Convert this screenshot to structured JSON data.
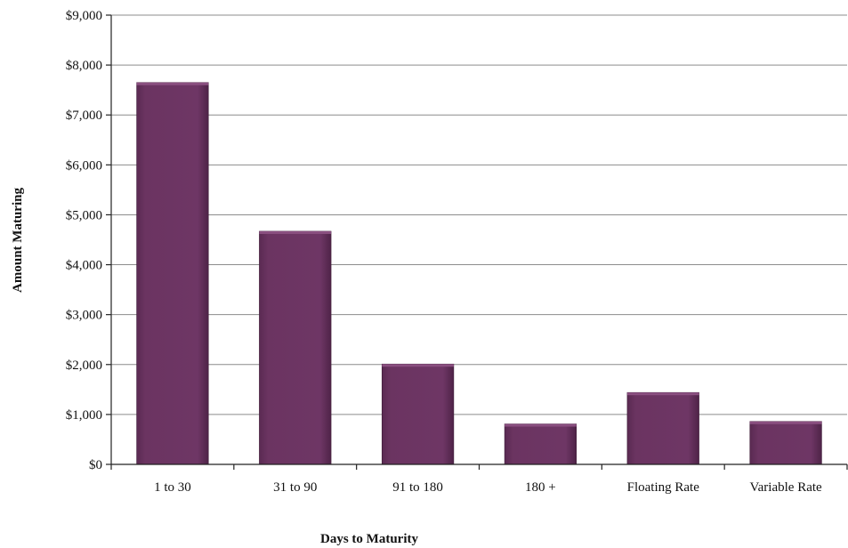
{
  "chart_data": {
    "type": "bar",
    "title": "",
    "xlabel": "Days to Maturity",
    "ylabel": "Amount  Maturing",
    "categories": [
      "1 to 30",
      "31 to 90",
      "91 to 180",
      "180 +",
      "Floating Rate",
      "Variable Rate"
    ],
    "values": [
      7650,
      4670,
      2010,
      810,
      1440,
      860
    ],
    "ylim": [
      0,
      9000
    ],
    "yticks": [
      0,
      1000,
      2000,
      3000,
      4000,
      5000,
      6000,
      7000,
      8000,
      9000
    ],
    "ytick_labels": [
      "$0",
      "$1,000",
      "$2,000",
      "$3,000",
      "$4,000",
      "$5,000",
      "$6,000",
      "$7,000",
      "$8,000",
      "$9,000"
    ],
    "grid": true,
    "legend": "none",
    "bar_color": "#6b3461"
  }
}
